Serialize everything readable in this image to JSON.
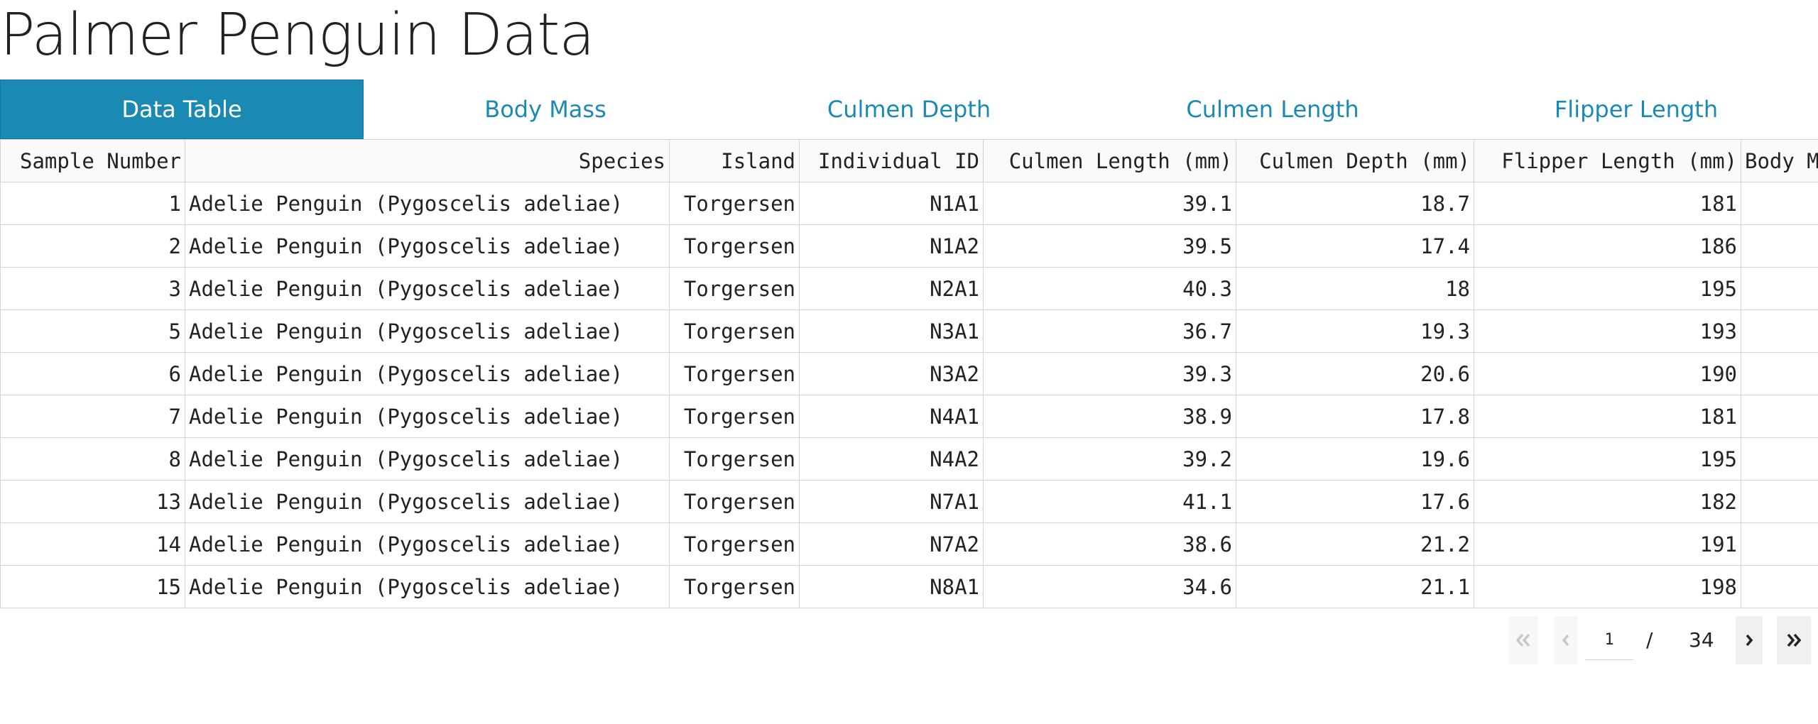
{
  "title": "Palmer Penguin Data",
  "tabs": [
    {
      "label": "Data Table",
      "active": true
    },
    {
      "label": "Body Mass",
      "active": false
    },
    {
      "label": "Culmen Depth",
      "active": false
    },
    {
      "label": "Culmen Length",
      "active": false
    },
    {
      "label": "Flipper Length",
      "active": false
    }
  ],
  "table": {
    "columns": [
      "Sample Number",
      "Species",
      "Island",
      "Individual ID",
      "Culmen Length (mm)",
      "Culmen Depth (mm)",
      "Flipper Length (mm)",
      "Body Mass (g)"
    ],
    "rows": [
      [
        "1",
        "Adelie Penguin (Pygoscelis adeliae)",
        "Torgersen",
        "N1A1",
        "39.1",
        "18.7",
        "181",
        ""
      ],
      [
        "2",
        "Adelie Penguin (Pygoscelis adeliae)",
        "Torgersen",
        "N1A2",
        "39.5",
        "17.4",
        "186",
        ""
      ],
      [
        "3",
        "Adelie Penguin (Pygoscelis adeliae)",
        "Torgersen",
        "N2A1",
        "40.3",
        "18",
        "195",
        ""
      ],
      [
        "5",
        "Adelie Penguin (Pygoscelis adeliae)",
        "Torgersen",
        "N3A1",
        "36.7",
        "19.3",
        "193",
        ""
      ],
      [
        "6",
        "Adelie Penguin (Pygoscelis adeliae)",
        "Torgersen",
        "N3A2",
        "39.3",
        "20.6",
        "190",
        ""
      ],
      [
        "7",
        "Adelie Penguin (Pygoscelis adeliae)",
        "Torgersen",
        "N4A1",
        "38.9",
        "17.8",
        "181",
        ""
      ],
      [
        "8",
        "Adelie Penguin (Pygoscelis adeliae)",
        "Torgersen",
        "N4A2",
        "39.2",
        "19.6",
        "195",
        ""
      ],
      [
        "13",
        "Adelie Penguin (Pygoscelis adeliae)",
        "Torgersen",
        "N7A1",
        "41.1",
        "17.6",
        "182",
        ""
      ],
      [
        "14",
        "Adelie Penguin (Pygoscelis adeliae)",
        "Torgersen",
        "N7A2",
        "38.6",
        "21.2",
        "191",
        ""
      ],
      [
        "15",
        "Adelie Penguin (Pygoscelis adeliae)",
        "Torgersen",
        "N8A1",
        "34.6",
        "21.1",
        "198",
        ""
      ]
    ]
  },
  "pagination": {
    "current_page": "1",
    "separator": "/",
    "total_pages": "34",
    "first_icon": "double-chevron-left-icon",
    "prev_icon": "chevron-left-icon",
    "next_icon": "chevron-right-icon",
    "last_icon": "double-chevron-right-icon"
  },
  "colors": {
    "accent": "#1a8ab5",
    "tab_active_text": "#ffffff",
    "border": "#d4d4d4",
    "disabled_icon": "#c8c8c8",
    "enabled_icon": "#222222"
  }
}
